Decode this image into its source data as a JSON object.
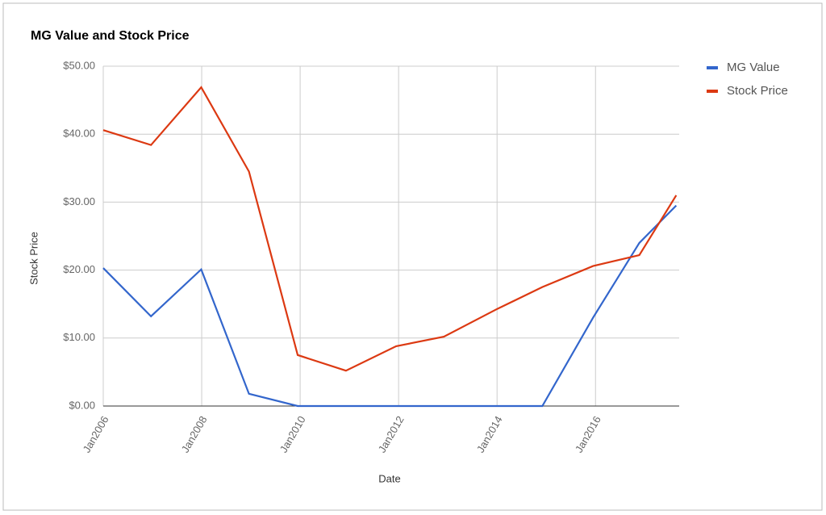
{
  "chart_data": {
    "type": "line",
    "title": "MG Value and Stock Price",
    "x_label": "Date",
    "y_label": "Stock Price",
    "x": [
      2006,
      2006.97,
      2007.99,
      2008.96,
      2009.95,
      2010.93,
      2011.95,
      2012.92,
      2013.98,
      2014.92,
      2015.95,
      2016.89,
      2017.64
    ],
    "series": [
      {
        "name": "MG Value",
        "color": "#3366cc",
        "values": [
          20.3,
          13.2,
          20.1,
          1.8,
          0,
          0,
          0,
          0,
          0,
          0,
          13,
          24,
          29.5
        ]
      },
      {
        "name": "Stock Price",
        "color": "#dc3912",
        "values": [
          40.6,
          38.4,
          46.9,
          34.5,
          7.5,
          5.2,
          8.8,
          10.2,
          14.2,
          17.5,
          20.6,
          22.2,
          31
        ]
      }
    ],
    "xlim": [
      2006,
      2017.7
    ],
    "xticks": [
      {
        "value": 2006,
        "label": "Jan2006"
      },
      {
        "value": 2008,
        "label": "Jan2008"
      },
      {
        "value": 2010,
        "label": "Jan2010"
      },
      {
        "value": 2012,
        "label": "Jan2012"
      },
      {
        "value": 2014,
        "label": "Jan2014"
      },
      {
        "value": 2016,
        "label": "Jan2016"
      }
    ],
    "ylim": [
      0,
      50
    ],
    "yticks": [
      {
        "value": 0,
        "label": "$0.00"
      },
      {
        "value": 10,
        "label": "$10.00"
      },
      {
        "value": 20,
        "label": "$20.00"
      },
      {
        "value": 30,
        "label": "$30.00"
      },
      {
        "value": 40,
        "label": "$40.00"
      },
      {
        "value": 50,
        "label": "$50.00"
      }
    ],
    "grid": true,
    "legend": "right"
  }
}
